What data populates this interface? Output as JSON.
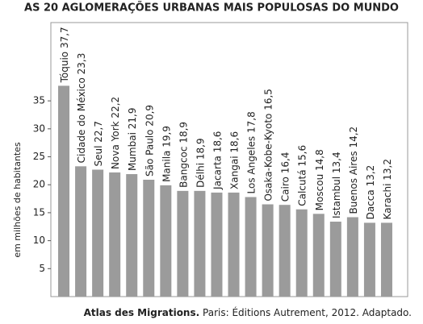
{
  "chart_data": {
    "type": "bar",
    "title": "AS 20 AGLOMERAÇÕES URBANAS MAIS POPULOSAS DO MUNDO",
    "y_label": "em milhões de habitantes",
    "categories": [
      "Tóquio",
      "Cidade do México",
      "Seul",
      "Nova York",
      "Mumbai",
      "São Paulo",
      "Manila",
      "Bangcoc",
      "Délhi",
      "Jacarta",
      "Xangai",
      "Los Angeles",
      "Osaka-Kobe-Kyoto",
      "Cairo",
      "Calcutá",
      "Moscou",
      "Istambul",
      "Buenos Aires",
      "Dacca",
      "Karachi"
    ],
    "values": [
      37.7,
      23.3,
      22.7,
      22.2,
      21.9,
      20.9,
      19.9,
      18.9,
      18.9,
      18.6,
      18.6,
      17.8,
      16.5,
      16.4,
      15.6,
      14.8,
      13.4,
      14.2,
      13.2,
      13.2
    ],
    "value_labels": [
      "37,7",
      "23,3",
      "22,7",
      "22,2",
      "21,9",
      "20,9",
      "19,9",
      "18,9",
      "18,9",
      "18,6",
      "18,6",
      "17,8",
      "16,5",
      "16,4",
      "15,6",
      "14,8",
      "13,4",
      "14,2",
      "13,2",
      "13,2"
    ],
    "color": "#9b9b9b",
    "ylim": [
      0,
      49
    ],
    "yticks": [
      5,
      10,
      15,
      20,
      25,
      30,
      35
    ],
    "source": {
      "bold": "Atlas des Migrations.",
      "text": "Paris: Éditions Autrement, 2012. Adaptado."
    }
  }
}
